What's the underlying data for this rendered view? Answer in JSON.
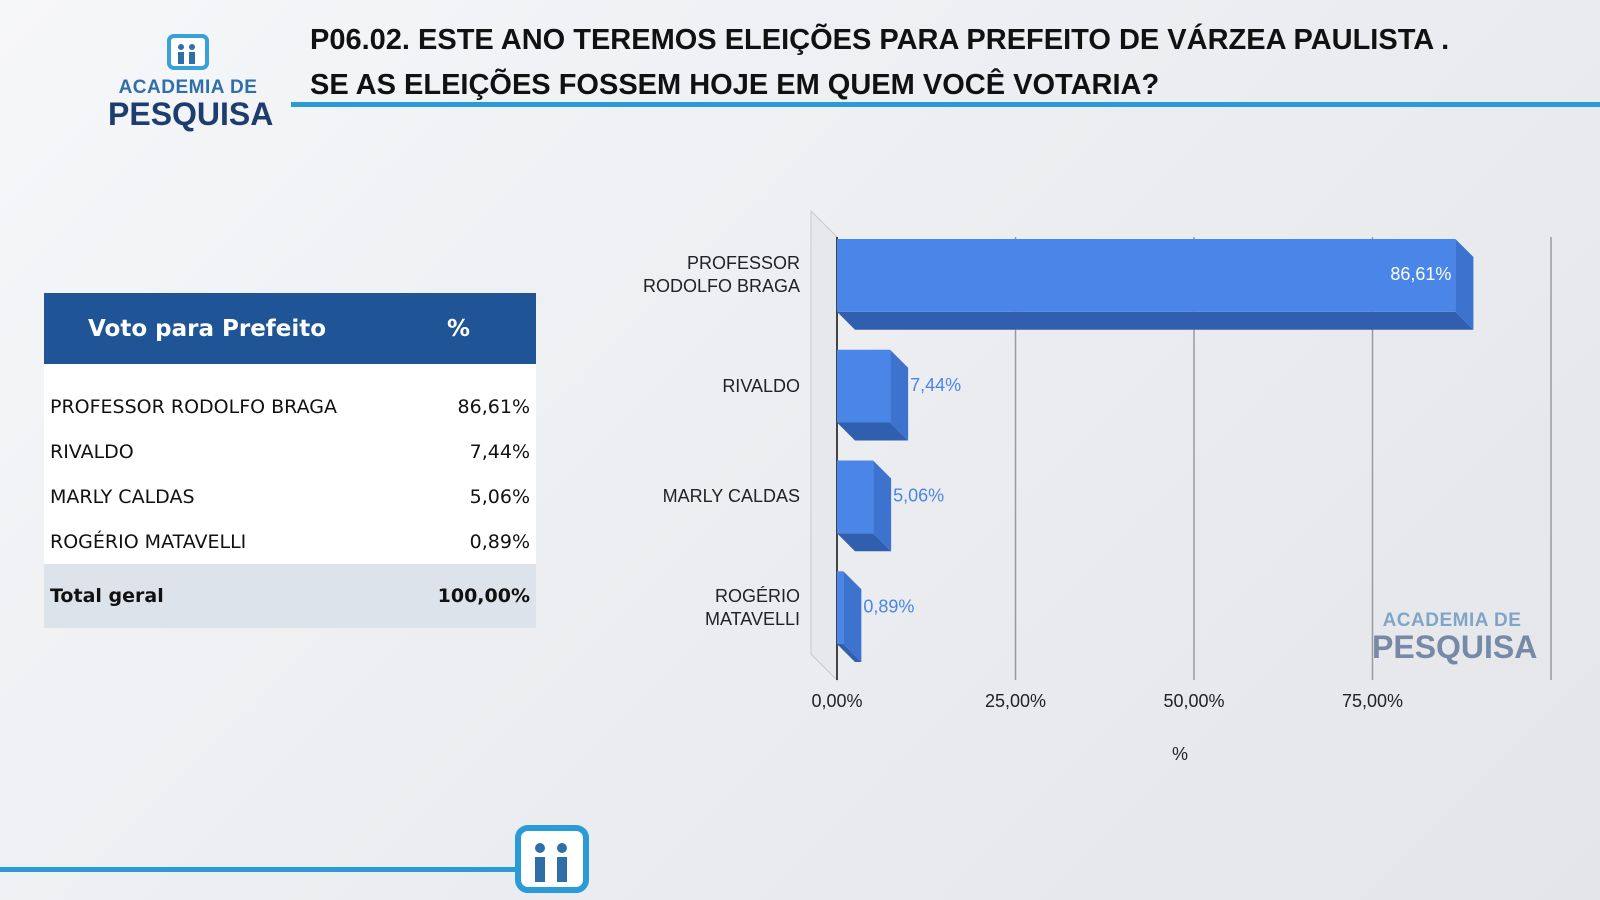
{
  "header": {
    "title": [
      "P06.02. ESTE ANO TEREMOS ELEIÇÕES PARA PREFEITO DE VÁRZEA PAULISTA .",
      "SE AS ELEIÇÕES FOSSEM HOJE EM QUEM VOCÊ VOTARIA?"
    ]
  },
  "logo": {
    "line1": "ACADEMIA DE",
    "line2": "PESQUISA"
  },
  "table": {
    "header": [
      "Voto para Prefeito",
      "%"
    ],
    "rows": [
      [
        "PROFESSOR RODOLFO BRAGA",
        "86,61%"
      ],
      [
        "RIVALDO",
        "7,44%"
      ],
      [
        "MARLY CALDAS",
        "5,06%"
      ],
      [
        "ROGÉRIO MATAVELLI",
        "0,89%"
      ]
    ],
    "total": [
      "Total geral",
      "100,00%"
    ]
  },
  "chart_data": {
    "type": "hbar",
    "x_label": "%",
    "categories": [
      "PROFESSOR RODOLFO BRAGA",
      "RIVALDO",
      "MARLY CALDAS",
      "ROGÉRIO MATAVELLI"
    ],
    "values": [
      86.61,
      7.44,
      5.06,
      0.89
    ],
    "value_labels": [
      "86,61%",
      "7,44%",
      "5,06%",
      "0,89%"
    ],
    "color": "#4a86e8",
    "xlim": [
      0,
      100
    ],
    "xticks": [
      {
        "value": 0,
        "label": "0,00%"
      },
      {
        "value": 25,
        "label": "25,00%"
      },
      {
        "value": 50,
        "label": "50,00%"
      },
      {
        "value": 75,
        "label": "75,00%"
      }
    ],
    "grid": true
  }
}
